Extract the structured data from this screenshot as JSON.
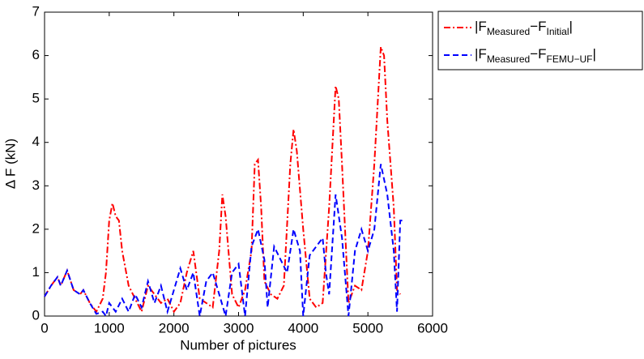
{
  "chart_data": {
    "type": "line",
    "xlabel": "Number of pictures",
    "ylabel": "Δ F (kN)",
    "xlim": [
      0,
      6000
    ],
    "ylim": [
      0,
      7
    ],
    "xticks": [
      0,
      1000,
      2000,
      3000,
      4000,
      5000,
      6000
    ],
    "yticks": [
      0,
      1,
      2,
      3,
      4,
      5,
      6,
      7
    ],
    "legend": "outside-right",
    "series": [
      {
        "name": [
          "|F",
          "Measured",
          "−F",
          "Initial",
          "|"
        ],
        "color": "#ff0000",
        "dash": "dashdot",
        "x": [
          0,
          100,
          200,
          250,
          350,
          450,
          550,
          600,
          700,
          800,
          900,
          950,
          1000,
          1050,
          1100,
          1150,
          1200,
          1300,
          1400,
          1500,
          1600,
          1700,
          1800,
          1900,
          2000,
          2100,
          2200,
          2300,
          2400,
          2500,
          2600,
          2700,
          2750,
          2800,
          2900,
          3000,
          3100,
          3200,
          3250,
          3300,
          3350,
          3400,
          3500,
          3600,
          3700,
          3800,
          3850,
          3900,
          4000,
          4100,
          4200,
          4300,
          4400,
          4500,
          4550,
          4600,
          4700,
          4800,
          4900,
          5000,
          5100,
          5200,
          5250,
          5300,
          5400,
          5450,
          5500
        ],
        "values": [
          0.45,
          0.7,
          0.9,
          0.7,
          1.05,
          0.6,
          0.5,
          0.6,
          0.3,
          0.1,
          0.4,
          1.0,
          2.2,
          2.6,
          2.3,
          2.2,
          1.5,
          0.7,
          0.4,
          0.1,
          0.7,
          0.5,
          0.3,
          0.4,
          0.1,
          0.3,
          1.0,
          1.5,
          0.4,
          0.3,
          0.2,
          1.5,
          2.8,
          2.3,
          0.5,
          0.2,
          0.6,
          1.5,
          3.5,
          3.6,
          2.5,
          0.8,
          0.5,
          0.4,
          0.7,
          3.5,
          4.3,
          3.8,
          2.0,
          0.4,
          0.2,
          0.3,
          2.5,
          5.3,
          5.0,
          3.5,
          0.3,
          0.7,
          0.6,
          1.5,
          3.5,
          6.2,
          6.0,
          4.5,
          2.5,
          0.6,
          0.5
        ]
      },
      {
        "name": [
          "|F",
          "Measured",
          "−F",
          "FEMU−UF",
          "|"
        ],
        "color": "#0000ff",
        "dash": "dashed",
        "x": [
          0,
          100,
          200,
          250,
          350,
          450,
          550,
          600,
          700,
          800,
          900,
          950,
          1000,
          1100,
          1200,
          1300,
          1400,
          1500,
          1600,
          1700,
          1800,
          1900,
          2000,
          2100,
          2200,
          2300,
          2400,
          2500,
          2600,
          2700,
          2800,
          2900,
          3000,
          3100,
          3200,
          3300,
          3400,
          3450,
          3550,
          3650,
          3750,
          3850,
          3950,
          4000,
          4100,
          4200,
          4300,
          4350,
          4400,
          4500,
          4600,
          4700,
          4800,
          4900,
          5000,
          5100,
          5200,
          5300,
          5400,
          5450,
          5500,
          5550
        ],
        "values": [
          0.45,
          0.7,
          0.9,
          0.7,
          1.05,
          0.6,
          0.5,
          0.6,
          0.3,
          0.05,
          0.1,
          0.0,
          0.3,
          0.1,
          0.4,
          0.1,
          0.5,
          0.2,
          0.8,
          0.3,
          0.7,
          0.1,
          0.6,
          1.1,
          0.6,
          1.0,
          0.0,
          0.8,
          1.0,
          0.5,
          0.0,
          1.0,
          1.2,
          0.0,
          1.6,
          2.0,
          1.3,
          0.2,
          1.6,
          1.3,
          1.0,
          2.0,
          1.5,
          0.0,
          1.4,
          1.6,
          1.8,
          1.0,
          0.5,
          2.8,
          1.8,
          0.0,
          1.5,
          2.0,
          1.5,
          2.0,
          3.5,
          2.8,
          1.5,
          0.1,
          2.2,
          2.2
        ]
      }
    ]
  }
}
